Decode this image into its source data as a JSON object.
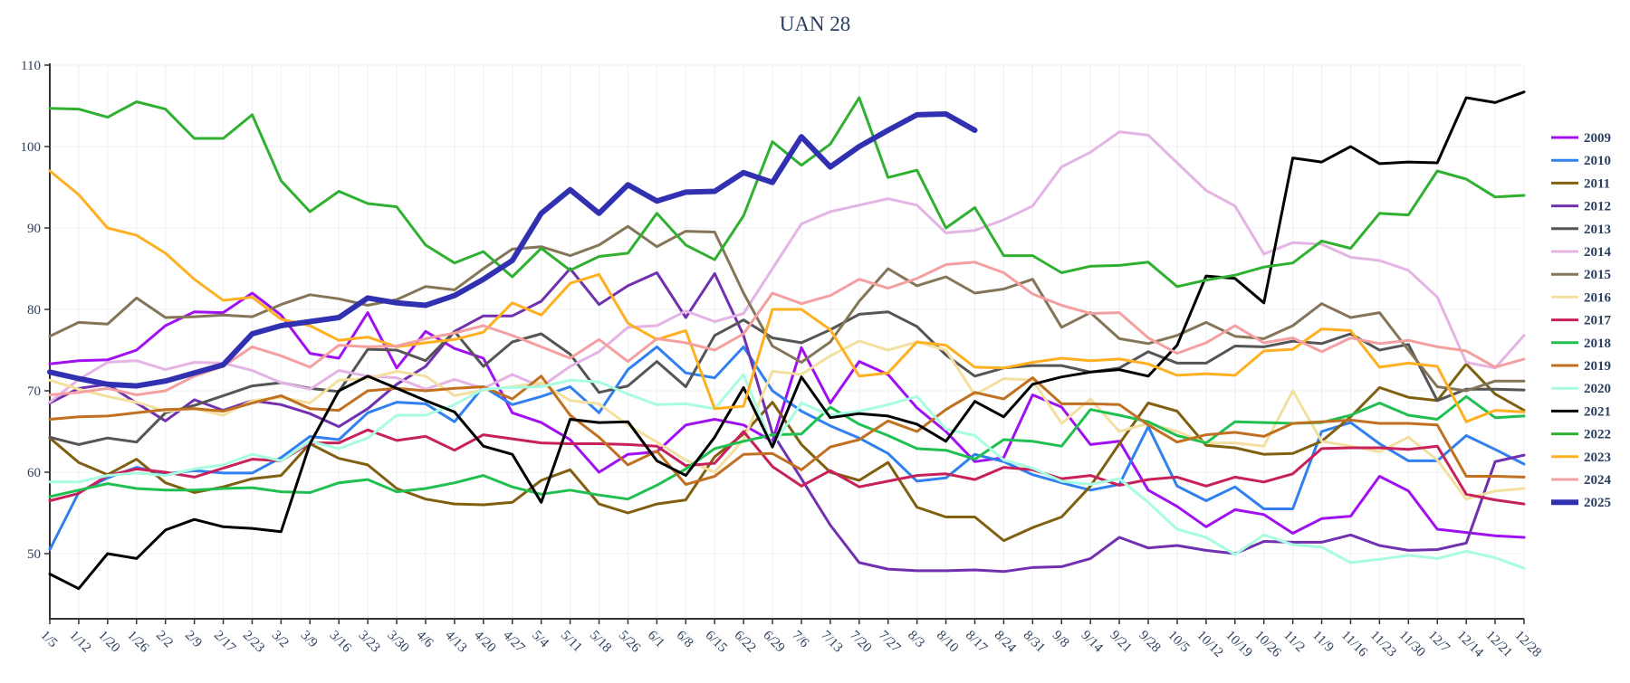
{
  "chart_data": {
    "type": "line",
    "title": "UAN 28",
    "categories": [
      "1/5",
      "1/12",
      "1/20",
      "1/26",
      "2/2",
      "2/9",
      "2/17",
      "2/23",
      "3/2",
      "3/9",
      "3/16",
      "3/23",
      "3/30",
      "4/6",
      "4/13",
      "4/20",
      "4/27",
      "5/4",
      "5/11",
      "5/18",
      "5/26",
      "6/1",
      "6/8",
      "6/15",
      "6/22",
      "6/29",
      "7/6",
      "7/13",
      "7/20",
      "7/27",
      "8/3",
      "8/10",
      "8/17",
      "8/24",
      "8/31",
      "9/8",
      "9/14",
      "9/21",
      "9/28",
      "10/5",
      "10/12",
      "10/19",
      "10/26",
      "11/2",
      "11/9",
      "11/16",
      "11/23",
      "11/30",
      "12/7",
      "12/14",
      "12/21",
      "12/28"
    ],
    "ylim": [
      42,
      110
    ],
    "yticks": [
      50,
      60,
      70,
      80,
      90,
      100,
      110
    ],
    "grid": true,
    "legend": "right",
    "series": [
      {
        "name": "2009",
        "color": "#a010f0",
        "values": [
          73.3,
          73.7,
          73.8,
          75,
          78,
          79.7,
          79.6,
          82,
          79.3,
          74.6,
          74,
          79.6,
          72.8,
          77.3,
          75.2,
          74,
          67.3,
          66.1,
          64,
          60,
          62.2,
          62.5,
          65.8,
          66.5,
          65.8,
          63.8,
          75.3,
          68.5,
          73.6,
          72,
          67.9,
          65,
          61.3,
          61.8,
          69.5,
          68,
          63.4,
          63.8,
          57.8,
          55.8,
          53.3,
          55.4,
          54.8,
          52.5,
          54.3,
          54.6,
          59.5,
          57.7,
          53,
          52.6,
          52.2,
          52
        ]
      },
      {
        "name": "2010",
        "color": "#3080f0",
        "values": [
          50.5,
          57.5,
          59.3,
          60.6,
          59.8,
          60.2,
          59.9,
          59.9,
          61.8,
          64.4,
          64,
          67.3,
          68.6,
          68.4,
          66.2,
          70.5,
          68.3,
          69.3,
          70.5,
          67.3,
          72.6,
          75.4,
          72.2,
          71.6,
          75.4,
          70,
          67.5,
          65.7,
          64.2,
          62.3,
          58.9,
          59.3,
          62.2,
          61.3,
          59.7,
          58.7,
          57.8,
          58.5,
          65.6,
          58.3,
          56.5,
          58.2,
          55.5,
          55.5,
          65,
          66.1,
          63.5,
          61.4,
          61.4,
          64.5,
          62.8,
          61
        ]
      },
      {
        "name": "2011",
        "color": "#806010",
        "values": [
          64.2,
          61.2,
          59.7,
          61.6,
          58.7,
          57.5,
          58.2,
          59.2,
          59.6,
          63.5,
          61.7,
          60.9,
          58,
          56.7,
          56.1,
          56,
          56.3,
          59,
          60.3,
          56.1,
          55,
          56.1,
          56.6,
          61.9,
          64.7,
          68.6,
          63.4,
          60,
          59,
          61.2,
          55.7,
          54.5,
          54.5,
          51.6,
          53.2,
          54.5,
          58.3,
          63.5,
          68.5,
          67.5,
          63.3,
          63,
          62.2,
          62.3,
          63.8,
          66.8,
          70.4,
          69.2,
          68.8,
          73.3,
          69.6,
          67.6
        ]
      },
      {
        "name": "2012",
        "color": "#7030b0",
        "values": [
          68.5,
          70.3,
          70.8,
          68.5,
          66.3,
          68.9,
          67.6,
          68.8,
          68.3,
          67.2,
          65.6,
          67.8,
          70.8,
          73,
          77.3,
          79.2,
          79.2,
          81,
          85,
          80.6,
          82.9,
          84.5,
          79,
          84.4,
          76.8,
          64.8,
          59.2,
          53.5,
          48.9,
          48.1,
          47.9,
          47.9,
          48,
          47.8,
          48.3,
          48.4,
          49.4,
          52,
          50.7,
          51,
          50.4,
          50,
          51.5,
          51.4,
          51.4,
          52.3,
          51,
          50.4,
          50.5,
          51.3,
          61.3,
          62.1
        ]
      },
      {
        "name": "2013",
        "color": "#555555",
        "values": [
          64.3,
          63.4,
          64.2,
          63.7,
          67.3,
          68.2,
          69.4,
          70.6,
          71,
          70.3,
          69.9,
          75.1,
          75,
          73.7,
          77.3,
          73,
          76,
          77,
          74.5,
          69.8,
          70.6,
          73.6,
          70.5,
          76.8,
          78.7,
          76.5,
          75.9,
          77.5,
          79.4,
          79.7,
          77.9,
          74.4,
          71.8,
          72.8,
          73.1,
          73.1,
          72.3,
          72.8,
          74.8,
          73.4,
          73.4,
          75.5,
          75.4,
          76.1,
          75.8,
          77,
          75,
          75.7,
          68.8,
          70.2,
          70.2,
          70.1
        ]
      },
      {
        "name": "2014",
        "color": "#e4b4e4",
        "values": [
          68.6,
          71.4,
          73.5,
          73.7,
          72.6,
          73.5,
          73.4,
          72.5,
          71,
          70.2,
          72.5,
          71.8,
          71.6,
          70.2,
          71.4,
          70.3,
          72,
          70.5,
          73,
          74.8,
          77.8,
          78,
          79.8,
          78.5,
          79.5,
          85,
          90.5,
          92,
          92.8,
          93.6,
          92.8,
          89.4,
          89.7,
          91,
          92.7,
          97.5,
          99.3,
          101.8,
          101.4,
          98,
          94.6,
          92.7,
          86.8,
          88.2,
          88,
          86.4,
          86,
          84.8,
          81.5,
          73.5,
          72.8,
          76.8
        ]
      },
      {
        "name": "2015",
        "color": "#857558",
        "values": [
          76.7,
          78.4,
          78.2,
          81.4,
          79,
          79.1,
          79.3,
          79.1,
          80.6,
          81.8,
          81.3,
          80.5,
          81.2,
          82.8,
          82.4,
          85,
          87.4,
          87.7,
          86.6,
          87.9,
          90.2,
          87.7,
          89.6,
          89.5,
          82,
          75.5,
          73.5,
          76,
          81,
          85,
          82.9,
          84,
          82,
          82.5,
          83.7,
          77.8,
          79.6,
          76.4,
          75.8,
          76.8,
          78.4,
          76.7,
          76.4,
          78,
          80.7,
          79,
          79.6,
          75,
          70.5,
          70,
          71.2,
          71.2
        ]
      },
      {
        "name": "2016",
        "color": "#f3e0a0",
        "values": [
          71.3,
          70.2,
          69.3,
          68.6,
          67.5,
          67.8,
          67,
          68.8,
          69.2,
          68.5,
          71.3,
          71.5,
          72.4,
          71.8,
          69.4,
          70.1,
          70.5,
          71,
          68.8,
          68.4,
          65.8,
          63.7,
          61.5,
          60,
          64,
          72.4,
          72,
          74.3,
          76.1,
          75,
          76,
          75,
          69.5,
          71.5,
          71.3,
          66,
          69,
          65,
          66,
          65,
          63.6,
          63.6,
          63.2,
          70,
          63.8,
          63.2,
          62.5,
          64.3,
          61.5,
          56.7,
          57.7,
          58
        ]
      },
      {
        "name": "2017",
        "color": "#c8205a",
        "values": [
          56.5,
          57.4,
          59.6,
          60.4,
          60,
          59.4,
          60.5,
          61.6,
          61.4,
          63.6,
          63.6,
          65.2,
          63.9,
          64.4,
          62.7,
          64.6,
          64.1,
          63.6,
          63.5,
          63.5,
          63.4,
          63.2,
          60.8,
          61.1,
          65,
          60.7,
          58.3,
          60.2,
          58.2,
          58.9,
          59.6,
          59.8,
          59.1,
          60.6,
          60.3,
          59.2,
          59.6,
          58.4,
          59.1,
          59.4,
          58.3,
          59.4,
          58.8,
          59.8,
          62.9,
          63,
          63,
          62.8,
          63.2,
          57.3,
          56.6,
          56.1
        ]
      },
      {
        "name": "2018",
        "color": "#20c050",
        "values": [
          57,
          57.8,
          58.6,
          58,
          57.8,
          57.8,
          58,
          58.1,
          57.6,
          57.5,
          58.7,
          59.1,
          57.6,
          58,
          58.7,
          59.6,
          58.2,
          57.3,
          57.8,
          57.2,
          56.7,
          58.4,
          60.4,
          62.9,
          63.8,
          64.6,
          64.7,
          68,
          65.9,
          64.5,
          62.9,
          62.7,
          61.6,
          64,
          63.8,
          63.2,
          67.7,
          67,
          66.2,
          64.5,
          63.6,
          66.2,
          66.1,
          66,
          66.1,
          67,
          68.5,
          67,
          66.5,
          69.3,
          66.7,
          66.9
        ]
      },
      {
        "name": "2019",
        "color": "#c07020",
        "values": [
          66.5,
          66.8,
          66.9,
          67.3,
          67.7,
          67.8,
          67.5,
          68.5,
          69.4,
          67.8,
          67.6,
          70,
          70.3,
          70,
          70.3,
          70.5,
          69,
          71.8,
          67,
          64.3,
          60.9,
          62.6,
          58.5,
          59.5,
          62.2,
          62.3,
          60.3,
          63.1,
          64,
          66.3,
          65,
          67.7,
          69.8,
          69,
          71.6,
          68.4,
          68.4,
          68.3,
          65.8,
          63.7,
          64.6,
          64.9,
          64.4,
          66,
          66.2,
          66.4,
          66,
          66,
          65.8,
          59.5,
          59.5,
          59.4
        ]
      },
      {
        "name": "2020",
        "color": "#a8fce0",
        "values": [
          58.8,
          58.8,
          59.6,
          59.9,
          59.6,
          60.4,
          60.9,
          62.2,
          61.4,
          63.8,
          62.9,
          64.2,
          67,
          67,
          68.3,
          70.2,
          70.4,
          70.5,
          71.3,
          71.1,
          69.6,
          68.3,
          68.4,
          67.8,
          72,
          63.2,
          68.5,
          67,
          67.5,
          68.3,
          69.3,
          65.3,
          64.5,
          61.5,
          60.5,
          58.9,
          58.5,
          59.2,
          56.3,
          53,
          52,
          49.9,
          52.3,
          51.1,
          50.8,
          48.9,
          49.3,
          49.8,
          49.4,
          50.3,
          49.5,
          48.2
        ]
      },
      {
        "name": "2021",
        "color": "#000000",
        "values": [
          47.5,
          45.7,
          50,
          49.4,
          52.9,
          54.2,
          53.3,
          53.1,
          52.7,
          63.5,
          70,
          71.8,
          70.3,
          68.8,
          67.4,
          63.2,
          62.2,
          56.3,
          66.5,
          66.1,
          66.2,
          61.4,
          59.6,
          64.3,
          70.4,
          63.1,
          71.7,
          66.7,
          67.2,
          66.9,
          65.9,
          63.8,
          68.7,
          66.8,
          70.8,
          71.7,
          72.3,
          72.6,
          71.8,
          75.6,
          84.1,
          83.8,
          80.8,
          98.6,
          98.1,
          100,
          97.9,
          98.1,
          98,
          106,
          105.4,
          106.7
        ]
      },
      {
        "name": "2022",
        "color": "#30b030",
        "values": [
          104.7,
          104.6,
          103.6,
          105.5,
          104.6,
          101,
          101,
          103.9,
          95.8,
          92,
          94.5,
          93,
          92.6,
          87.9,
          85.7,
          87.1,
          84,
          87.5,
          84.8,
          86.5,
          86.9,
          91.8,
          87.9,
          86.1,
          91.5,
          100.6,
          97.7,
          100.3,
          106,
          96.2,
          97.1,
          90,
          92.5,
          86.6,
          86.6,
          84.5,
          85.3,
          85.4,
          85.8,
          82.8,
          83.6,
          84.2,
          85.2,
          85.7,
          88.4,
          87.5,
          91.8,
          91.6,
          97,
          96,
          93.8,
          94
        ]
      },
      {
        "name": "2023",
        "color": "#ffb020",
        "values": [
          97,
          94.1,
          90,
          89.1,
          86.9,
          83.7,
          81.1,
          81.5,
          78.8,
          78,
          76.2,
          76.6,
          75.4,
          75.9,
          76.3,
          77.2,
          80.8,
          79.3,
          83.2,
          84.3,
          78.3,
          76.3,
          77.4,
          67.8,
          68.1,
          80,
          80,
          77.5,
          71.8,
          72.2,
          76,
          75.6,
          72.9,
          72.8,
          73.5,
          74,
          73.7,
          73.9,
          73.3,
          71.9,
          72.1,
          71.9,
          74.9,
          75.1,
          77.6,
          77.4,
          72.9,
          73.4,
          73,
          66.2,
          67.6,
          67.4
        ]
      },
      {
        "name": "2024",
        "color": "#f4a0a0",
        "values": [
          69.5,
          69.8,
          70.3,
          69.5,
          70,
          71.8,
          73,
          75.4,
          74.3,
          72.9,
          75.6,
          75.4,
          75.5,
          76.4,
          77.1,
          78,
          76.8,
          75.4,
          74,
          76.3,
          73.6,
          76.4,
          75.9,
          75,
          77,
          82,
          80.7,
          81.7,
          83.7,
          82.6,
          83.8,
          85.5,
          85.8,
          84.5,
          81.9,
          80.5,
          79.5,
          79.6,
          76.5,
          74.6,
          75.9,
          78,
          75.9,
          76.5,
          74.8,
          76.5,
          75.8,
          76.2,
          75.4,
          74.9,
          72.9,
          73.9
        ]
      },
      {
        "name": "2025",
        "color": "#3030b0",
        "values": [
          72.3,
          71.5,
          70.8,
          70.6,
          71.2,
          72.2,
          73.2,
          77,
          78,
          78.5,
          79,
          81.4,
          80.8,
          80.5,
          81.7,
          83.7,
          86,
          91.8,
          94.7,
          91.8,
          95.3,
          93.3,
          94.4,
          94.5,
          96.8,
          95.6,
          101.2,
          97.5,
          100,
          102,
          103.9,
          104,
          102,
          null,
          null,
          null,
          null,
          null,
          null,
          null,
          null,
          null,
          null,
          null,
          null,
          null,
          null,
          null,
          null,
          null,
          null,
          null
        ]
      }
    ]
  }
}
